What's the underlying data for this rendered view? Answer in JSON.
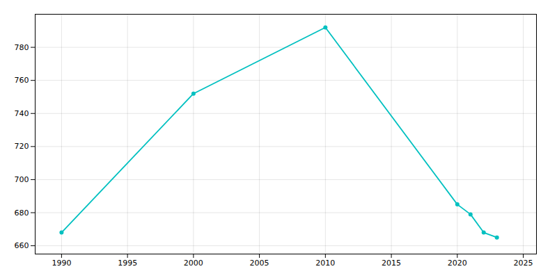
{
  "chart_data": {
    "type": "line",
    "x": [
      1990,
      2000,
      2010,
      2020,
      2021,
      2022,
      2023
    ],
    "values": [
      668,
      752,
      792,
      685,
      679,
      668,
      665
    ],
    "color": "#00C0C0",
    "marker": "circle",
    "xlim": [
      1988,
      2026
    ],
    "ylim": [
      655,
      800
    ],
    "xticks": [
      1990,
      1995,
      2000,
      2005,
      2010,
      2015,
      2020,
      2025
    ],
    "yticks": [
      660,
      680,
      700,
      720,
      740,
      760,
      780
    ],
    "grid": true
  }
}
